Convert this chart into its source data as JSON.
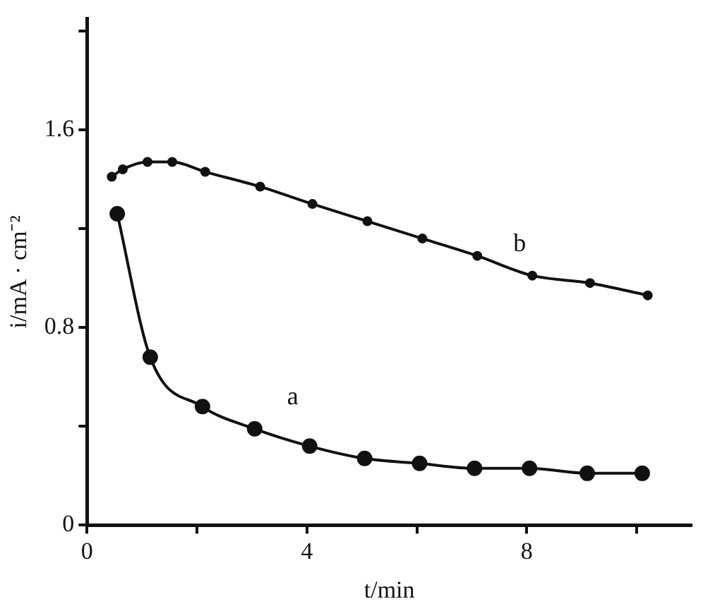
{
  "chart_data": {
    "type": "line",
    "xlabel": "t/min",
    "ylabel": "i/mA · cm⁻²",
    "xlim": [
      0,
      11
    ],
    "ylim": [
      0,
      2.05
    ],
    "xticks": [
      0,
      {
        "value": 2,
        "label": null
      },
      4,
      {
        "value": 6,
        "label": null
      },
      8,
      {
        "value": 10,
        "label": null
      }
    ],
    "yticks": [
      0,
      {
        "value": 0.4,
        "label": null
      },
      0.8,
      {
        "value": 1.2,
        "label": null
      },
      1.6,
      {
        "value": 2.0,
        "label": null
      }
    ],
    "grid": false,
    "legend": false,
    "marker": "circle",
    "line_style": "solid",
    "series": [
      {
        "name": "a",
        "color": "#111111",
        "x": [
          0.55,
          1.15,
          2.1,
          3.05,
          4.05,
          5.05,
          6.05,
          7.05,
          8.05,
          9.1,
          10.1
        ],
        "values": [
          1.26,
          0.68,
          0.48,
          0.39,
          0.32,
          0.27,
          0.25,
          0.23,
          0.23,
          0.21,
          0.21
        ]
      },
      {
        "name": "b",
        "color": "#111111",
        "x": [
          0.45,
          0.65,
          1.1,
          1.55,
          2.15,
          3.15,
          4.1,
          5.1,
          6.1,
          7.1,
          8.1,
          9.15,
          10.2
        ],
        "values": [
          1.41,
          1.44,
          1.47,
          1.47,
          1.43,
          1.37,
          1.3,
          1.23,
          1.16,
          1.09,
          1.01,
          0.98,
          0.93
        ]
      }
    ]
  }
}
